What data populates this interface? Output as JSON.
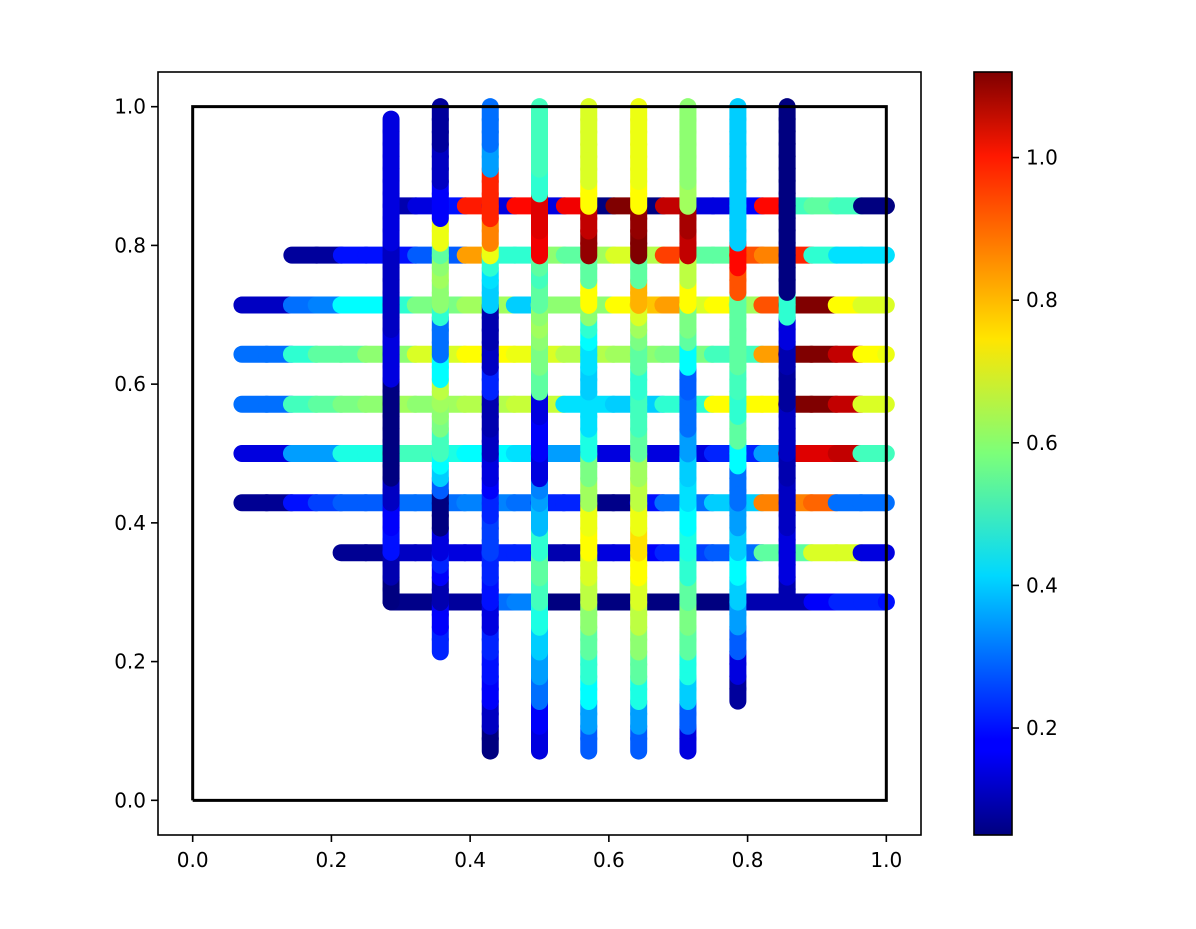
{
  "chart_data": {
    "type": "line",
    "title": "",
    "xlabel": "",
    "ylabel": "",
    "xlim": [
      -0.05,
      1.05
    ],
    "ylim": [
      -0.05,
      1.05
    ],
    "x_ticks": [
      "0.0",
      "0.2",
      "0.4",
      "0.6",
      "0.8",
      "1.0"
    ],
    "y_ticks": [
      "0.0",
      "0.2",
      "0.4",
      "0.6",
      "0.8",
      "1.0"
    ],
    "grid": false,
    "colormap": "jet",
    "colorbar": {
      "range": [
        0.05,
        1.12
      ],
      "ticks": [
        "0.2",
        "0.4",
        "0.6",
        "0.8",
        "1.0"
      ],
      "tick_values": [
        0.2,
        0.4,
        0.6,
        0.8,
        1.0
      ]
    },
    "boundary_square": {
      "x": [
        0,
        1,
        1,
        0,
        0
      ],
      "y": [
        0,
        0,
        1,
        1,
        0
      ],
      "color": "#000000"
    },
    "grid_step": 0.0714,
    "horizontal_lines": [
      {
        "y": 0.857,
        "x_start": 0.286,
        "values": [
          0.1,
          0.15,
          0.2,
          0.96,
          0.15,
          0.98,
          0.15,
          1.0,
          0.05,
          1.12,
          0.05,
          1.05,
          0.15,
          0.15,
          0.18,
          0.98,
          0.52,
          0.55,
          0.52,
          0.05,
          0.05
        ]
      },
      {
        "y": 0.786,
        "x_start": 0.143,
        "values": [
          0.08,
          0.08,
          0.2,
          0.2,
          0.2,
          0.28,
          0.28,
          0.82,
          0.5,
          0.5,
          0.6,
          0.55,
          0.62,
          0.68,
          0.64,
          0.92,
          0.55,
          0.55,
          0.9,
          0.85,
          0.95,
          0.5,
          0.42,
          0.42,
          0.42
        ]
      },
      {
        "y": 0.714,
        "x_start": 0.071,
        "values": [
          0.12,
          0.12,
          0.3,
          0.32,
          0.45,
          0.45,
          0.5,
          0.58,
          0.58,
          0.62,
          0.62,
          0.4,
          0.6,
          0.6,
          0.6,
          0.72,
          0.78,
          0.82,
          0.68,
          0.72,
          0.62,
          0.9,
          1.12,
          1.12,
          0.72,
          0.68,
          0.68,
          0.68
        ]
      },
      {
        "y": 0.643,
        "x_start": 0.071,
        "values": [
          0.3,
          0.3,
          0.5,
          0.55,
          0.55,
          0.6,
          0.6,
          0.68,
          0.68,
          0.72,
          0.72,
          0.7,
          0.68,
          0.64,
          0.64,
          0.62,
          0.6,
          0.58,
          0.58,
          0.52,
          0.52,
          0.82,
          1.12,
          1.12,
          1.05,
          0.72,
          0.7,
          0.7
        ]
      },
      {
        "y": 0.571,
        "x_start": 0.071,
        "values": [
          0.3,
          0.3,
          0.52,
          0.55,
          0.58,
          0.6,
          0.62,
          0.6,
          0.62,
          0.64,
          0.64,
          0.66,
          0.66,
          0.42,
          0.42,
          0.4,
          0.4,
          0.5,
          0.5,
          0.72,
          0.72,
          0.72,
          1.12,
          1.12,
          1.05,
          0.68,
          0.68,
          0.68
        ]
      },
      {
        "y": 0.5,
        "x_start": 0.071,
        "values": [
          0.15,
          0.15,
          0.35,
          0.35,
          0.48,
          0.48,
          0.52,
          0.52,
          0.48,
          0.45,
          0.45,
          0.42,
          0.35,
          0.35,
          0.15,
          0.15,
          0.15,
          0.15,
          0.15,
          0.22,
          0.22,
          0.35,
          1.02,
          1.02,
          1.05,
          0.52,
          0.52,
          0.52
        ]
      },
      {
        "y": 0.429,
        "x_start": 0.071,
        "values": [
          0.07,
          0.07,
          0.2,
          0.25,
          0.28,
          0.28,
          0.3,
          0.3,
          0.3,
          0.32,
          0.32,
          0.3,
          0.22,
          0.22,
          0.06,
          0.06,
          0.2,
          0.3,
          0.3,
          0.4,
          0.4,
          0.85,
          0.85,
          0.88,
          0.3,
          0.3,
          0.3,
          0.3
        ]
      },
      {
        "y": 0.357,
        "x_start": 0.214,
        "values": [
          0.07,
          0.07,
          0.12,
          0.12,
          0.15,
          0.15,
          0.22,
          0.22,
          0.1,
          0.1,
          0.15,
          0.15,
          0.18,
          0.22,
          0.25,
          0.28,
          0.3,
          0.55,
          0.55,
          0.68,
          0.68,
          0.15,
          0.15,
          0.15
        ]
      },
      {
        "y": 0.286,
        "x_start": 0.286,
        "values": [
          0.06,
          0.06,
          0.08,
          0.08,
          0.3,
          0.32,
          0.05,
          0.05,
          0.05,
          0.05,
          0.05,
          0.05,
          0.05,
          0.05,
          0.1,
          0.1,
          0.1,
          0.18,
          0.22,
          0.22,
          0.2,
          0.2,
          0.2
        ]
      }
    ],
    "vertical_lines": [
      {
        "x": 0.286,
        "y_start": 0.286,
        "values": [
          0.05,
          0.05,
          0.1,
          0.1,
          0.2,
          0.2,
          0.18,
          0.18,
          0.12,
          0.12,
          0.05,
          0.05,
          0.05,
          0.05,
          0.05,
          0.05,
          0.05,
          0.05,
          0.15,
          0.15,
          0.15,
          0.15,
          0.12,
          0.12,
          0.12,
          0.12,
          0.12,
          0.12,
          0.12,
          0.15,
          0.15,
          0.15,
          0.15,
          0.15,
          0.15,
          0.15,
          0.15,
          0.15,
          0.15
        ]
      },
      {
        "x": 0.357,
        "y_start": 0.214,
        "values": [
          0.22,
          0.22,
          0.18,
          0.18,
          0.1,
          0.1,
          0.18,
          0.22,
          0.15,
          0.15,
          0.05,
          0.05,
          0.05,
          0.28,
          0.4,
          0.45,
          0.52,
          0.52,
          0.58,
          0.6,
          0.62,
          0.65,
          0.45,
          0.45,
          0.3,
          0.3,
          0.3,
          0.5,
          0.6,
          0.6,
          0.62,
          0.6,
          0.55,
          0.7,
          0.7,
          0.18,
          0.18,
          0.18,
          0.12,
          0.12,
          0.12,
          0.08,
          0.08,
          0.08,
          0.08,
          0.08,
          0.08
        ]
      },
      {
        "x": 0.429,
        "y_start": 0.071,
        "values": [
          0.05,
          0.05,
          0.12,
          0.12,
          0.18,
          0.18,
          0.2,
          0.2,
          0.22,
          0.22,
          0.15,
          0.15,
          0.2,
          0.2,
          0.22,
          0.22,
          0.25,
          0.25,
          0.25,
          0.22,
          0.22,
          0.18,
          0.15,
          0.15,
          0.12,
          0.12,
          0.1,
          0.1,
          0.1,
          0.22,
          0.22,
          0.12,
          0.12,
          0.1,
          0.1,
          0.1,
          0.4,
          0.4,
          0.42,
          0.5,
          0.7,
          0.85,
          0.85,
          0.95,
          0.95,
          0.95,
          0.95,
          0.35,
          0.35,
          0.3,
          0.3,
          0.3,
          0.3,
          0.3,
          0.3,
          0.3,
          0.3,
          0.3,
          0.3,
          0.3,
          0.3,
          0.3,
          0.3,
          0.3,
          0.3
        ]
      },
      {
        "x": 0.5,
        "y_start": 0.071,
        "values": [
          0.15,
          0.15,
          0.18,
          0.18,
          0.3,
          0.3,
          0.35,
          0.35,
          0.4,
          0.4,
          0.48,
          0.48,
          0.52,
          0.52,
          0.55,
          0.55,
          0.5,
          0.5,
          0.38,
          0.38,
          0.35,
          0.32,
          0.15,
          0.15,
          0.18,
          0.18,
          0.18,
          0.15,
          0.15,
          0.55,
          0.55,
          0.58,
          0.58,
          0.6,
          0.62,
          0.6,
          0.55,
          0.55,
          0.52,
          0.55,
          1.0,
          1.0,
          1.02,
          1.02,
          1.02,
          0.5,
          0.5,
          0.52,
          0.52,
          0.52,
          0.52,
          0.52,
          0.52,
          0.52,
          0.52,
          0.52,
          0.52,
          0.52,
          0.52,
          0.52,
          0.52,
          0.52,
          0.52,
          0.52,
          0.52
        ]
      },
      {
        "x": 0.571,
        "y_start": 0.071,
        "values": [
          0.28,
          0.28,
          0.35,
          0.35,
          0.45,
          0.45,
          0.5,
          0.5,
          0.55,
          0.55,
          0.6,
          0.6,
          0.65,
          0.65,
          0.68,
          0.68,
          0.72,
          0.72,
          0.7,
          0.7,
          0.62,
          0.62,
          0.58,
          0.58,
          0.48,
          0.48,
          0.42,
          0.42,
          0.42,
          0.4,
          0.4,
          0.42,
          0.42,
          0.45,
          0.5,
          0.6,
          0.72,
          0.72,
          0.55,
          0.55,
          1.1,
          1.1,
          1.05,
          1.05,
          0.72,
          0.72,
          0.68,
          0.68,
          0.68,
          0.68,
          0.68,
          0.68,
          0.68,
          0.68,
          0.68,
          0.68,
          0.68,
          0.68,
          0.68,
          0.68,
          0.68,
          0.68,
          0.68,
          0.68
        ]
      },
      {
        "x": 0.643,
        "y_start": 0.071,
        "values": [
          0.28,
          0.28,
          0.35,
          0.35,
          0.48,
          0.48,
          0.55,
          0.55,
          0.6,
          0.6,
          0.65,
          0.65,
          0.68,
          0.68,
          0.72,
          0.72,
          0.75,
          0.75,
          0.7,
          0.7,
          0.65,
          0.65,
          0.62,
          0.62,
          0.55,
          0.55,
          0.52,
          0.52,
          0.52,
          0.5,
          0.5,
          0.55,
          0.55,
          0.58,
          0.62,
          0.68,
          0.8,
          0.8,
          0.55,
          0.55,
          1.12,
          1.12,
          1.1,
          1.1,
          0.72,
          0.72,
          0.7,
          0.7,
          0.7,
          0.7,
          0.7,
          0.7,
          0.7,
          0.7,
          0.7,
          0.7,
          0.7,
          0.7,
          0.7,
          0.7,
          0.7,
          0.7,
          0.7,
          0.7
        ]
      },
      {
        "x": 0.714,
        "y_start": 0.071,
        "values": [
          0.15,
          0.15,
          0.28,
          0.28,
          0.4,
          0.4,
          0.48,
          0.48,
          0.55,
          0.55,
          0.58,
          0.58,
          0.55,
          0.55,
          0.5,
          0.5,
          0.48,
          0.48,
          0.45,
          0.45,
          0.42,
          0.42,
          0.4,
          0.4,
          0.35,
          0.35,
          0.3,
          0.3,
          0.3,
          0.28,
          0.28,
          0.45,
          0.45,
          0.55,
          0.58,
          0.58,
          0.72,
          0.72,
          0.65,
          0.65,
          1.05,
          1.05,
          1.08,
          1.08,
          0.62,
          0.62,
          0.6,
          0.6,
          0.6,
          0.6,
          0.6,
          0.6,
          0.6,
          0.6,
          0.6,
          0.6,
          0.6,
          0.6,
          0.6,
          0.6,
          0.6,
          0.6,
          0.6,
          0.6
        ]
      },
      {
        "x": 0.786,
        "y_start": 0.143,
        "values": [
          0.08,
          0.08,
          0.15,
          0.15,
          0.28,
          0.28,
          0.35,
          0.35,
          0.4,
          0.4,
          0.45,
          0.45,
          0.4,
          0.4,
          0.35,
          0.35,
          0.3,
          0.3,
          0.3,
          0.45,
          0.45,
          0.55,
          0.55,
          0.5,
          0.5,
          0.52,
          0.52,
          0.55,
          0.55,
          0.55,
          0.55,
          0.55,
          0.55,
          0.9,
          0.9,
          0.98,
          0.98,
          0.4,
          0.4,
          0.4,
          0.4,
          0.4,
          0.4,
          0.4,
          0.4,
          0.4,
          0.4,
          0.4,
          0.4,
          0.4,
          0.4,
          0.4,
          0.4
        ]
      },
      {
        "x": 0.857,
        "y_start": 0.286,
        "values": [
          0.1,
          0.1,
          0.15,
          0.15,
          0.15,
          0.15,
          0.12,
          0.12,
          0.12,
          0.12,
          0.1,
          0.1,
          0.12,
          0.12,
          0.12,
          0.12,
          0.08,
          0.08,
          0.08,
          0.1,
          0.1,
          0.15,
          0.15,
          0.5,
          0.5,
          0.05,
          0.05,
          0.05,
          0.05,
          0.05,
          0.05,
          0.05,
          0.05,
          0.05,
          0.05,
          0.05,
          0.05,
          0.05,
          0.05,
          0.05,
          0.05
        ]
      }
    ]
  }
}
